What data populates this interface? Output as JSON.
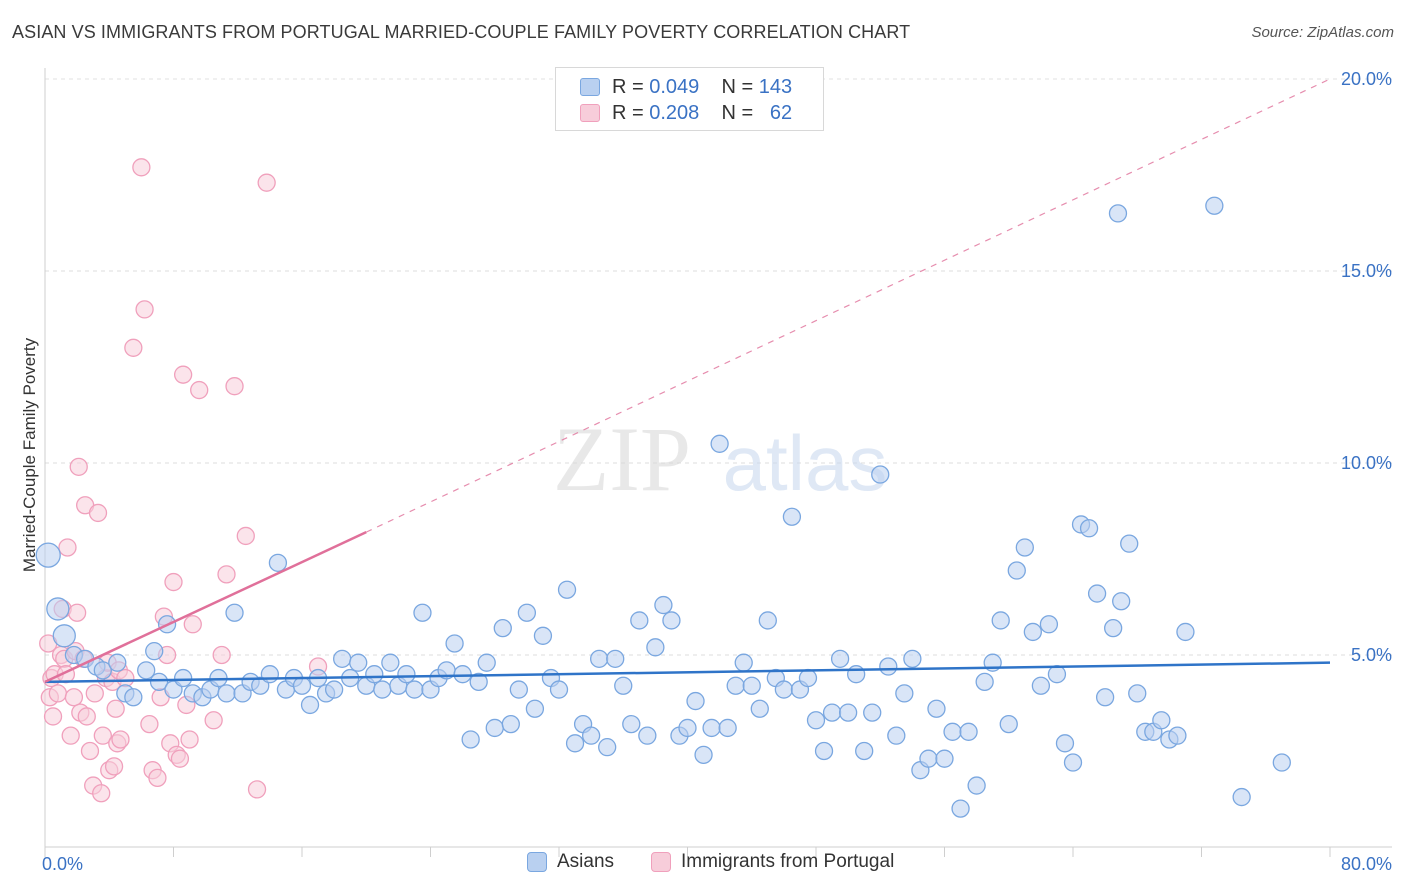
{
  "title": "ASIAN VS IMMIGRANTS FROM PORTUGAL MARRIED-COUPLE FAMILY POVERTY CORRELATION CHART",
  "source": "Source: ZipAtlas.com",
  "watermark": {
    "zip": "ZIP",
    "atlas": "atlas"
  },
  "legend_top": [
    {
      "r_label": "R =",
      "r_value": "0.049",
      "n_label": "N =",
      "n_value": "143"
    },
    {
      "r_label": "R =",
      "r_value": "0.208",
      "n_label": "N =",
      "n_value": "62"
    }
  ],
  "chart_data": {
    "type": "scatter",
    "title": "ASIAN VS IMMIGRANTS FROM PORTUGAL MARRIED-COUPLE FAMILY POVERTY CORRELATION CHART",
    "xlabel": "",
    "ylabel": "Married-Couple Family Poverty",
    "xlim": [
      0,
      80
    ],
    "ylim": [
      0,
      20
    ],
    "x_tick_labels": [
      "0.0%",
      "80.0%"
    ],
    "y_tick_labels": [
      "5.0%",
      "10.0%",
      "15.0%",
      "20.0%"
    ],
    "y_ticks": [
      5,
      10,
      15,
      20
    ],
    "grid": true,
    "legend_placement": "bottom-center",
    "series": [
      {
        "name": "Asians",
        "color": "#7aa7e0",
        "fill": "#b9d0f0",
        "line_color": "#2f74c8",
        "trend": {
          "x": [
            0,
            80
          ],
          "y": [
            4.3,
            4.8
          ]
        },
        "points": [
          [
            0.2,
            7.6
          ],
          [
            0.8,
            6.2
          ],
          [
            1.2,
            5.5
          ],
          [
            1.8,
            5.0
          ],
          [
            2.5,
            4.9
          ],
          [
            3.2,
            4.7
          ],
          [
            3.6,
            4.6
          ],
          [
            4.5,
            4.8
          ],
          [
            5.0,
            4.0
          ],
          [
            5.5,
            3.9
          ],
          [
            6.3,
            4.6
          ],
          [
            6.8,
            5.1
          ],
          [
            7.1,
            4.3
          ],
          [
            7.6,
            5.8
          ],
          [
            8.0,
            4.1
          ],
          [
            8.6,
            4.4
          ],
          [
            9.2,
            4.0
          ],
          [
            9.8,
            3.9
          ],
          [
            10.3,
            4.1
          ],
          [
            10.8,
            4.4
          ],
          [
            11.3,
            4.0
          ],
          [
            11.8,
            6.1
          ],
          [
            12.3,
            4.0
          ],
          [
            12.8,
            4.3
          ],
          [
            13.4,
            4.2
          ],
          [
            14.0,
            4.5
          ],
          [
            14.5,
            7.4
          ],
          [
            15.0,
            4.1
          ],
          [
            15.5,
            4.4
          ],
          [
            16.0,
            4.2
          ],
          [
            16.5,
            3.7
          ],
          [
            17.0,
            4.4
          ],
          [
            17.5,
            4.0
          ],
          [
            18.0,
            4.1
          ],
          [
            18.5,
            4.9
          ],
          [
            19.0,
            4.4
          ],
          [
            19.5,
            4.8
          ],
          [
            20.0,
            4.2
          ],
          [
            20.5,
            4.5
          ],
          [
            21.0,
            4.1
          ],
          [
            21.5,
            4.8
          ],
          [
            22.0,
            4.2
          ],
          [
            22.5,
            4.5
          ],
          [
            23.0,
            4.1
          ],
          [
            23.5,
            6.1
          ],
          [
            24.0,
            4.1
          ],
          [
            24.5,
            4.4
          ],
          [
            25.0,
            4.6
          ],
          [
            25.5,
            5.3
          ],
          [
            26.0,
            4.5
          ],
          [
            26.5,
            2.8
          ],
          [
            27.0,
            4.3
          ],
          [
            27.5,
            4.8
          ],
          [
            28.0,
            3.1
          ],
          [
            28.5,
            5.7
          ],
          [
            29.0,
            3.2
          ],
          [
            29.5,
            4.1
          ],
          [
            30.0,
            6.1
          ],
          [
            30.5,
            3.6
          ],
          [
            31.0,
            5.5
          ],
          [
            31.5,
            4.4
          ],
          [
            32.0,
            4.1
          ],
          [
            32.5,
            6.7
          ],
          [
            33.0,
            2.7
          ],
          [
            33.5,
            3.2
          ],
          [
            34.0,
            2.9
          ],
          [
            34.5,
            4.9
          ],
          [
            35.0,
            2.6
          ],
          [
            35.5,
            4.9
          ],
          [
            36.0,
            4.2
          ],
          [
            36.5,
            3.2
          ],
          [
            37.0,
            5.9
          ],
          [
            37.5,
            2.9
          ],
          [
            38.0,
            5.2
          ],
          [
            38.5,
            6.3
          ],
          [
            39.0,
            5.9
          ],
          [
            39.5,
            2.9
          ],
          [
            40.0,
            3.1
          ],
          [
            40.5,
            3.8
          ],
          [
            41.0,
            2.4
          ],
          [
            41.5,
            3.1
          ],
          [
            42.0,
            10.5
          ],
          [
            42.5,
            3.1
          ],
          [
            43.0,
            4.2
          ],
          [
            43.5,
            4.8
          ],
          [
            44.0,
            4.2
          ],
          [
            44.5,
            3.6
          ],
          [
            45.0,
            5.9
          ],
          [
            45.5,
            4.4
          ],
          [
            46.0,
            4.1
          ],
          [
            46.5,
            8.6
          ],
          [
            47.0,
            4.1
          ],
          [
            47.5,
            4.4
          ],
          [
            48.0,
            3.3
          ],
          [
            48.5,
            2.5
          ],
          [
            49.0,
            3.5
          ],
          [
            49.5,
            4.9
          ],
          [
            50.0,
            3.5
          ],
          [
            50.5,
            4.5
          ],
          [
            51.0,
            2.5
          ],
          [
            51.5,
            3.5
          ],
          [
            52.0,
            9.7
          ],
          [
            52.5,
            4.7
          ],
          [
            53.0,
            2.9
          ],
          [
            53.5,
            4.0
          ],
          [
            54.0,
            4.9
          ],
          [
            54.5,
            2.0
          ],
          [
            55.0,
            2.3
          ],
          [
            55.5,
            3.6
          ],
          [
            56.0,
            2.3
          ],
          [
            56.5,
            3.0
          ],
          [
            57.0,
            1.0
          ],
          [
            57.5,
            3.0
          ],
          [
            58.0,
            1.6
          ],
          [
            58.5,
            4.3
          ],
          [
            59.0,
            4.8
          ],
          [
            59.5,
            5.9
          ],
          [
            60.0,
            3.2
          ],
          [
            60.5,
            7.2
          ],
          [
            61.0,
            7.8
          ],
          [
            61.5,
            5.6
          ],
          [
            62.0,
            4.2
          ],
          [
            62.5,
            5.8
          ],
          [
            63.0,
            4.5
          ],
          [
            63.5,
            2.7
          ],
          [
            64.0,
            2.2
          ],
          [
            64.5,
            8.4
          ],
          [
            65.0,
            8.3
          ],
          [
            65.5,
            6.6
          ],
          [
            66.0,
            3.9
          ],
          [
            66.5,
            5.7
          ],
          [
            67.0,
            6.4
          ],
          [
            67.5,
            7.9
          ],
          [
            68.0,
            4.0
          ],
          [
            68.5,
            3.0
          ],
          [
            69.0,
            3.0
          ],
          [
            69.5,
            3.3
          ],
          [
            70.0,
            2.8
          ],
          [
            70.5,
            2.9
          ],
          [
            71.0,
            5.6
          ],
          [
            66.8,
            16.5
          ],
          [
            72.8,
            16.7
          ],
          [
            74.5,
            1.3
          ],
          [
            77.0,
            2.2
          ]
        ]
      },
      {
        "name": "Immigrants from Portugal",
        "color": "#f0a0bc",
        "fill": "#f7cdda",
        "line_color": "#e0709a",
        "trend": {
          "x": [
            0,
            20
          ],
          "y": [
            4.3,
            8.2
          ],
          "dash_to": [
            80,
            20.0
          ]
        },
        "points": [
          [
            0.2,
            5.3
          ],
          [
            0.3,
            3.9
          ],
          [
            0.4,
            4.4
          ],
          [
            0.5,
            3.4
          ],
          [
            0.6,
            4.5
          ],
          [
            0.8,
            4.0
          ],
          [
            1.0,
            5.0
          ],
          [
            1.1,
            6.2
          ],
          [
            1.2,
            4.9
          ],
          [
            1.3,
            4.5
          ],
          [
            1.4,
            7.8
          ],
          [
            1.6,
            2.9
          ],
          [
            1.8,
            3.9
          ],
          [
            1.9,
            5.1
          ],
          [
            2.0,
            6.1
          ],
          [
            2.1,
            9.9
          ],
          [
            2.2,
            3.5
          ],
          [
            2.4,
            4.9
          ],
          [
            2.5,
            8.9
          ],
          [
            2.6,
            3.4
          ],
          [
            2.8,
            2.5
          ],
          [
            3.0,
            1.6
          ],
          [
            3.1,
            4.0
          ],
          [
            3.3,
            8.7
          ],
          [
            3.5,
            1.4
          ],
          [
            3.6,
            2.9
          ],
          [
            3.8,
            4.4
          ],
          [
            3.9,
            4.8
          ],
          [
            4.0,
            2.0
          ],
          [
            4.2,
            4.3
          ],
          [
            4.3,
            2.1
          ],
          [
            4.4,
            3.6
          ],
          [
            4.5,
            2.7
          ],
          [
            4.6,
            4.6
          ],
          [
            4.7,
            2.8
          ],
          [
            5.0,
            4.4
          ],
          [
            5.5,
            13.0
          ],
          [
            6.0,
            17.7
          ],
          [
            6.2,
            14.0
          ],
          [
            6.5,
            3.2
          ],
          [
            6.7,
            2.0
          ],
          [
            7.0,
            1.8
          ],
          [
            7.2,
            3.9
          ],
          [
            7.4,
            6.0
          ],
          [
            7.6,
            5.0
          ],
          [
            7.8,
            2.7
          ],
          [
            8.0,
            6.9
          ],
          [
            8.2,
            2.4
          ],
          [
            8.4,
            2.3
          ],
          [
            8.6,
            12.3
          ],
          [
            8.8,
            3.7
          ],
          [
            9.0,
            2.8
          ],
          [
            9.2,
            5.8
          ],
          [
            9.6,
            11.9
          ],
          [
            10.5,
            3.3
          ],
          [
            11.0,
            5.0
          ],
          [
            11.3,
            7.1
          ],
          [
            11.8,
            12.0
          ],
          [
            12.5,
            8.1
          ],
          [
            13.2,
            1.5
          ],
          [
            13.8,
            17.3
          ],
          [
            17.0,
            4.7
          ]
        ]
      }
    ]
  }
}
